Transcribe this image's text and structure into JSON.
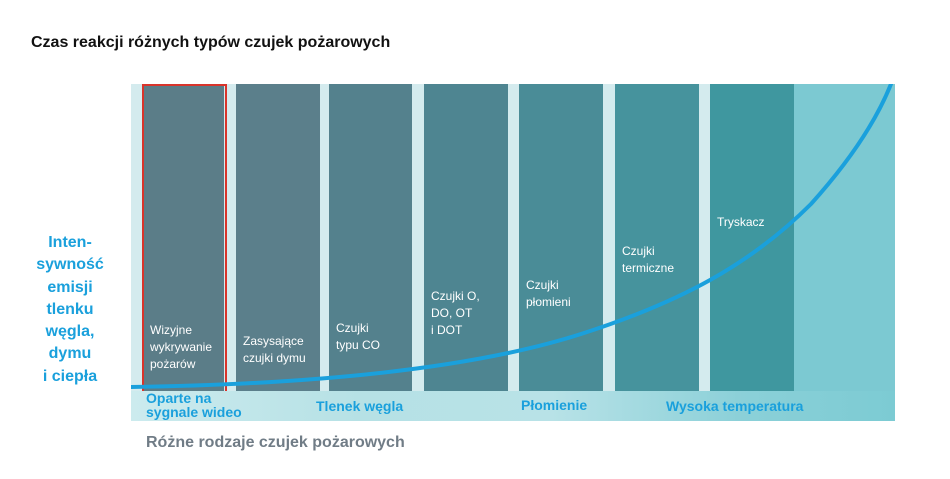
{
  "title": "Czas reakcji różnych typów czujek pożarowych",
  "y_label_lines": [
    "Inten-",
    "sywność",
    "emisji",
    "tlenku",
    "węgla,",
    "dymu",
    "i ciepła"
  ],
  "x_label": "Różne rodzaje czujek pożarowych",
  "columns": [
    {
      "label_lines": [
        "Wizyjne",
        "wykrywanie",
        "pożarów"
      ],
      "color": "#5b7d88"
    },
    {
      "label_lines": [
        "Zasysające",
        "czujki dymu"
      ],
      "color": "#5b7f8b"
    },
    {
      "label_lines": [
        "Czujki",
        "typu CO"
      ],
      "color": "#54818d"
    },
    {
      "label_lines": [
        "Czujki O,",
        "DO, OT",
        "i DOT"
      ],
      "color": "#4e8591"
    },
    {
      "label_lines": [
        "Czujki",
        "płomieni"
      ],
      "color": "#4a8c97"
    },
    {
      "label_lines": [
        "Czujki",
        "termiczne"
      ],
      "color": "#46939d"
    },
    {
      "label_lines": [
        "Tryskacz"
      ],
      "color": "#3f979f"
    }
  ],
  "bands": [
    {
      "label": "Oparte na\nsygnale wideo"
    },
    {
      "label": "Tlenek węgla"
    },
    {
      "label": "Płomienie"
    },
    {
      "label": "Wysoka temperatura"
    }
  ],
  "colors": {
    "accent": "#1aa0dc",
    "highlight": "#d9342b",
    "curve": "#1aa0dc",
    "last_area": "#7cc9d2"
  }
}
